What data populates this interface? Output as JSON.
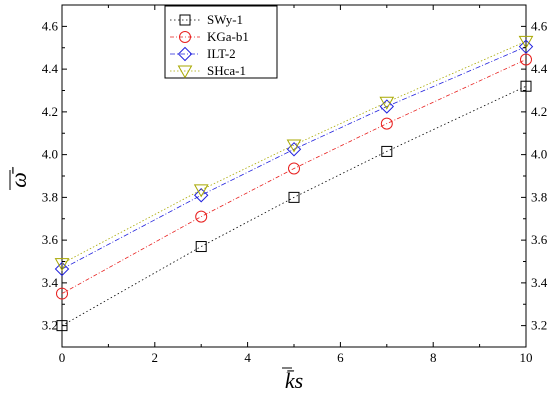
{
  "chart_data": {
    "type": "line",
    "xlabel": "k̄s",
    "ylabel": "ω̄",
    "xlim": [
      0,
      10
    ],
    "ylim": [
      3.1,
      4.7
    ],
    "x_ticks": [
      "0",
      "2",
      "4",
      "6",
      "8",
      "10"
    ],
    "y_ticks": [
      "3.2",
      "3.4",
      "3.6",
      "3.8",
      "4.0",
      "4.2",
      "4.4",
      "4.6"
    ],
    "x": [
      0,
      3,
      5,
      7,
      10
    ],
    "legend_position": "top-left",
    "grid": false,
    "series": [
      {
        "name": "SWy-1",
        "marker": "square",
        "color": "#000000",
        "values": [
          3.2,
          3.57,
          3.8,
          4.015,
          4.32
        ]
      },
      {
        "name": "KGa-b1",
        "marker": "circle",
        "color": "#e8201f",
        "values": [
          3.35,
          3.71,
          3.935,
          4.145,
          4.445
        ]
      },
      {
        "name": "ILT-2",
        "marker": "diamond",
        "color": "#2222dd",
        "values": [
          3.465,
          3.81,
          4.025,
          4.225,
          4.505
        ]
      },
      {
        "name": "SHca-1",
        "marker": "triangle-down",
        "color": "#a8a800",
        "values": [
          3.49,
          3.835,
          4.045,
          4.245,
          4.53
        ]
      }
    ]
  }
}
